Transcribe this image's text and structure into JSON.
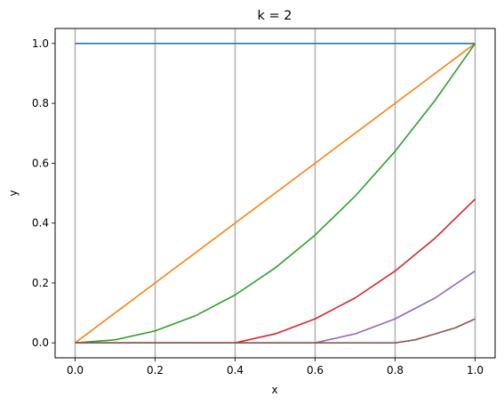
{
  "chart_data": {
    "type": "line",
    "title": "k = 2",
    "xlabel": "x",
    "ylabel": "y",
    "xlim": [
      -0.05,
      1.05
    ],
    "ylim": [
      -0.05,
      1.05
    ],
    "xticks": [
      0.0,
      0.2,
      0.4,
      0.6,
      0.8,
      1.0
    ],
    "xtick_labels": [
      "0.0",
      "0.2",
      "0.4",
      "0.6",
      "0.8",
      "1.0"
    ],
    "yticks": [
      0.0,
      0.2,
      0.4,
      0.6,
      0.8,
      1.0
    ],
    "ytick_labels": [
      "0.0",
      "0.2",
      "0.4",
      "0.6",
      "0.8",
      "1.0"
    ],
    "vertical_gridlines": [
      0.0,
      0.2,
      0.4,
      0.6,
      0.8,
      1.0
    ],
    "grid_color": "#b0b0b0",
    "series": [
      {
        "color": "#1f77b4",
        "x": [
          0.0,
          0.2,
          0.4,
          0.6,
          0.8,
          1.0
        ],
        "y": [
          1.0,
          1.0,
          1.0,
          1.0,
          1.0,
          1.0
        ]
      },
      {
        "color": "#ff7f0e",
        "x": [
          0.0,
          0.2,
          0.4,
          0.6,
          0.8,
          1.0
        ],
        "y": [
          0.0,
          0.2,
          0.4,
          0.6,
          0.8,
          1.0
        ]
      },
      {
        "color": "#2ca02c",
        "x": [
          0.0,
          0.1,
          0.2,
          0.3,
          0.4,
          0.5,
          0.6,
          0.7,
          0.8,
          0.9,
          1.0
        ],
        "y": [
          0.0,
          0.01,
          0.04,
          0.09,
          0.16,
          0.25,
          0.36,
          0.49,
          0.64,
          0.81,
          1.0
        ]
      },
      {
        "color": "#d62728",
        "x": [
          0.0,
          0.2,
          0.4,
          0.5,
          0.6,
          0.7,
          0.8,
          0.9,
          1.0
        ],
        "y": [
          0.0,
          0.0,
          0.0,
          0.03,
          0.08,
          0.15,
          0.24,
          0.35,
          0.48
        ]
      },
      {
        "color": "#9467bd",
        "x": [
          0.0,
          0.2,
          0.4,
          0.6,
          0.7,
          0.8,
          0.9,
          1.0
        ],
        "y": [
          0.0,
          0.0,
          0.0,
          0.0,
          0.03,
          0.08,
          0.15,
          0.24
        ]
      },
      {
        "color": "#8c564b",
        "x": [
          0.0,
          0.2,
          0.4,
          0.6,
          0.8,
          0.85,
          0.9,
          0.95,
          1.0
        ],
        "y": [
          0.0,
          0.0,
          0.0,
          0.0,
          0.0,
          0.01,
          0.03,
          0.05,
          0.08
        ]
      }
    ]
  }
}
